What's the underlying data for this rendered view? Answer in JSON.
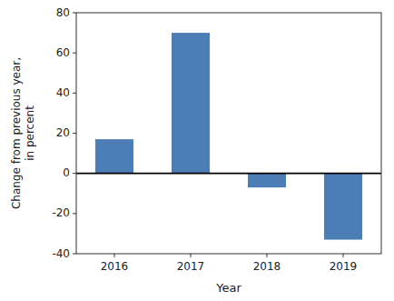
{
  "chart_data": {
    "type": "bar",
    "categories": [
      "2016",
      "2017",
      "2018",
      "2019"
    ],
    "values": [
      17,
      70,
      -7,
      -33
    ],
    "color": "#4d7db5",
    "xlabel": "Year",
    "ylabel": "Change from previous year,\nin percent",
    "ylim": [
      -40,
      80
    ],
    "yticks": [
      -40,
      -20,
      0,
      20,
      40,
      60,
      80
    ],
    "grid": false
  }
}
